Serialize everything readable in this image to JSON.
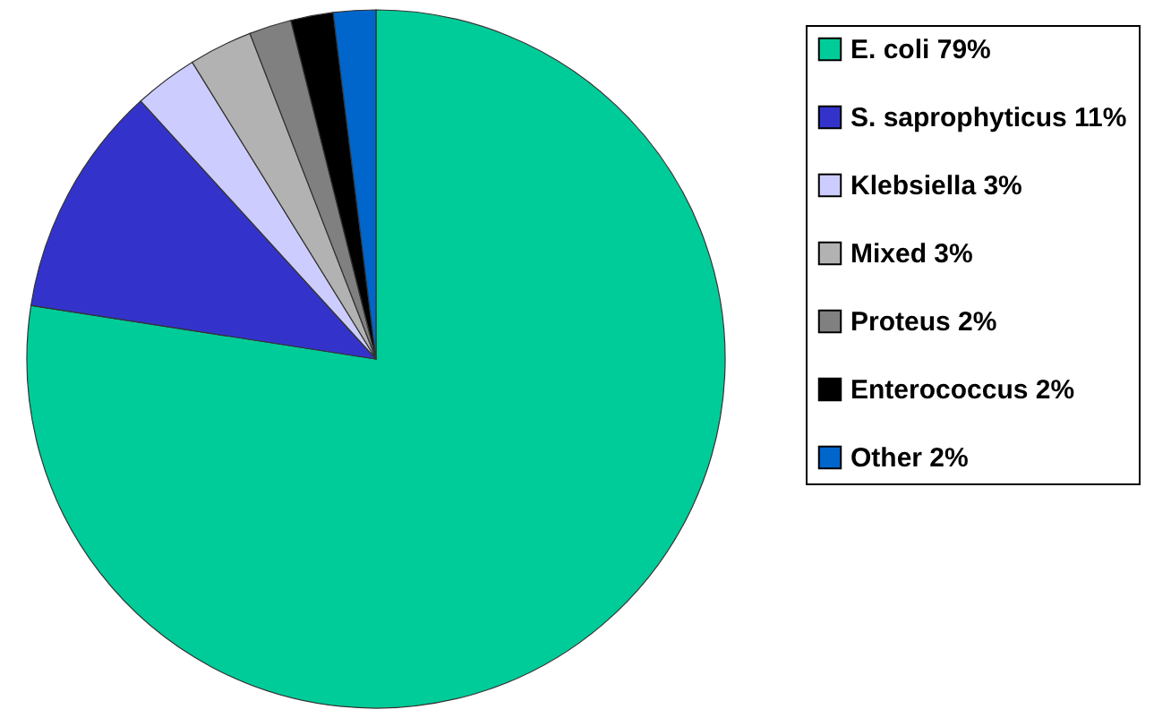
{
  "chart_data": {
    "type": "pie",
    "categories": [
      "E. coli 79%",
      "S. saprophyticus 11%",
      "Klebsiella 3%",
      "Mixed 3%",
      "Proteus 2%",
      "Enterococcus 2%",
      "Other 2%"
    ],
    "values": [
      79,
      11,
      3,
      3,
      2,
      2,
      2
    ],
    "colors": [
      "#00cc99",
      "#3333cc",
      "#ccccff",
      "#b2b2b2",
      "#808080",
      "#000000",
      "#0066cc"
    ],
    "legend": "right"
  }
}
